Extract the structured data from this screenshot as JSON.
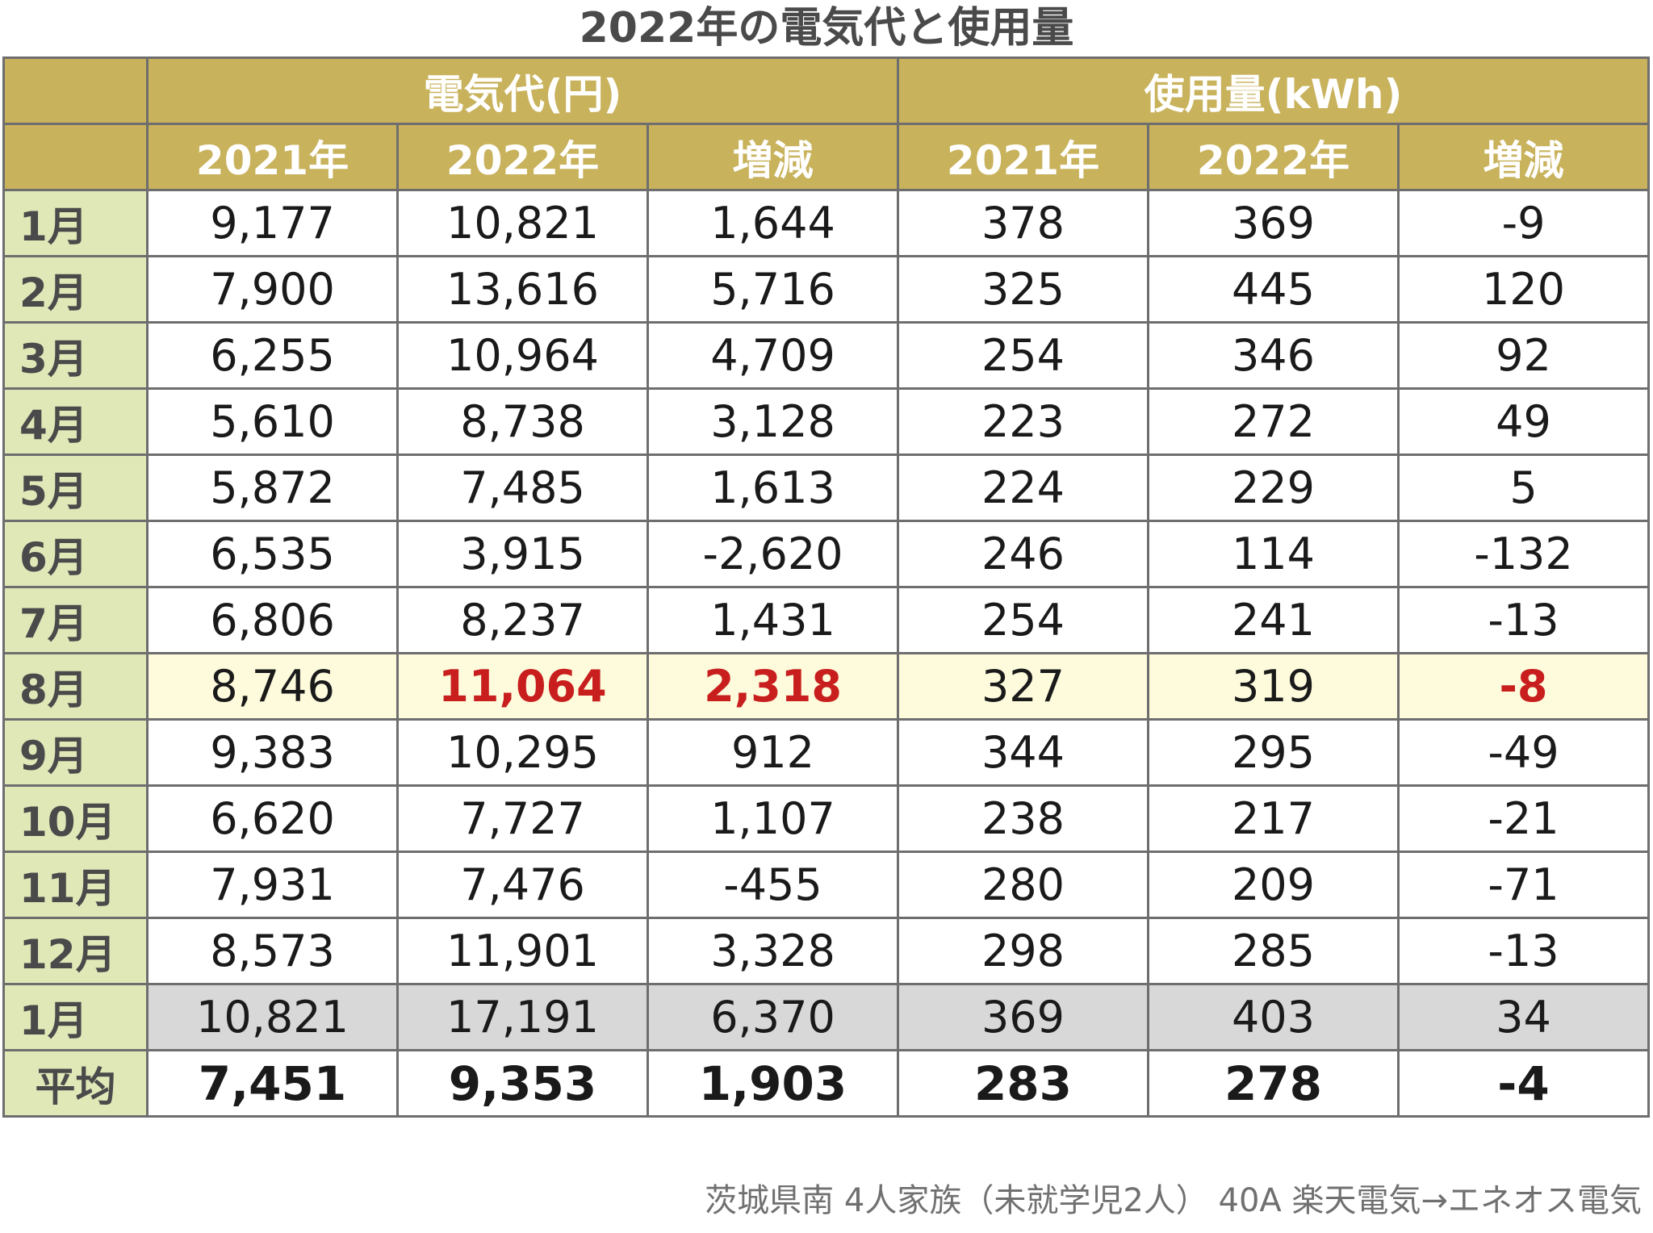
{
  "title": "2022年の電気代と使用量",
  "header": {
    "cost_group": "電気代(円)",
    "usage_group": "使用量(kWh)",
    "cols": [
      "2021年",
      "2022年",
      "増減",
      "2021年",
      "2022年",
      "増減"
    ]
  },
  "rows": [
    {
      "month": "1月",
      "values": [
        "9,177",
        "10,821",
        "1,644",
        "378",
        "369",
        "-9"
      ]
    },
    {
      "month": "2月",
      "values": [
        "7,900",
        "13,616",
        "5,716",
        "325",
        "445",
        "120"
      ]
    },
    {
      "month": "3月",
      "values": [
        "6,255",
        "10,964",
        "4,709",
        "254",
        "346",
        "92"
      ]
    },
    {
      "month": "4月",
      "values": [
        "5,610",
        "8,738",
        "3,128",
        "223",
        "272",
        "49"
      ]
    },
    {
      "month": "5月",
      "values": [
        "5,872",
        "7,485",
        "1,613",
        "224",
        "229",
        "5"
      ]
    },
    {
      "month": "6月",
      "values": [
        "6,535",
        "3,915",
        "-2,620",
        "246",
        "114",
        "-132"
      ]
    },
    {
      "month": "7月",
      "values": [
        "6,806",
        "8,237",
        "1,431",
        "254",
        "241",
        "-13"
      ]
    },
    {
      "month": "8月",
      "values": [
        "8,746",
        "11,064",
        "2,318",
        "327",
        "319",
        "-8"
      ]
    },
    {
      "month": "9月",
      "values": [
        "9,383",
        "10,295",
        "912",
        "344",
        "295",
        "-49"
      ]
    },
    {
      "month": "10月",
      "values": [
        "6,620",
        "7,727",
        "1,107",
        "238",
        "217",
        "-21"
      ]
    },
    {
      "month": "11月",
      "values": [
        "7,931",
        "7,476",
        "-455",
        "280",
        "209",
        "-71"
      ]
    },
    {
      "month": "12月",
      "values": [
        "8,573",
        "11,901",
        "3,328",
        "298",
        "285",
        "-13"
      ]
    },
    {
      "month": "1月",
      "values": [
        "10,821",
        "17,191",
        "6,370",
        "369",
        "403",
        "34"
      ]
    }
  ],
  "average": {
    "label": "平均",
    "values": [
      "7,451",
      "9,353",
      "1,903",
      "283",
      "278",
      "-4"
    ]
  },
  "footnote": "茨城県南 4人家族（未就学児2人） 40A 楽天電気→エネオス電気",
  "colors": {
    "header_bg": "#c8b25c",
    "month_bg": "#e0e8b8",
    "highlight_bg": "#fdfbdc",
    "gray_bg": "#d8d8d8",
    "highlight_text": "#c81e1e",
    "grid": "#6e6e6e"
  },
  "chart_data": {
    "type": "table",
    "title": "2022年の電気代と使用量",
    "column_groups": [
      {
        "name": "電気代(円)",
        "columns": [
          "2021年",
          "2022年",
          "増減"
        ]
      },
      {
        "name": "使用量(kWh)",
        "columns": [
          "2021年",
          "2022年",
          "増減"
        ]
      }
    ],
    "row_labels": [
      "1月",
      "2月",
      "3月",
      "4月",
      "5月",
      "6月",
      "7月",
      "8月",
      "9月",
      "10月",
      "11月",
      "12月",
      "1月",
      "平均"
    ],
    "values": [
      [
        9177,
        10821,
        1644,
        378,
        369,
        -9
      ],
      [
        7900,
        13616,
        5716,
        325,
        445,
        120
      ],
      [
        6255,
        10964,
        4709,
        254,
        346,
        92
      ],
      [
        5610,
        8738,
        3128,
        223,
        272,
        49
      ],
      [
        5872,
        7485,
        1613,
        224,
        229,
        5
      ],
      [
        6535,
        3915,
        -2620,
        246,
        114,
        -132
      ],
      [
        6806,
        8237,
        1431,
        254,
        241,
        -13
      ],
      [
        8746,
        11064,
        2318,
        327,
        319,
        -8
      ],
      [
        9383,
        10295,
        912,
        344,
        295,
        -49
      ],
      [
        6620,
        7727,
        1107,
        238,
        217,
        -21
      ],
      [
        7931,
        7476,
        -455,
        280,
        209,
        -71
      ],
      [
        8573,
        11901,
        3328,
        298,
        285,
        -13
      ],
      [
        10821,
        17191,
        6370,
        369,
        403,
        34
      ],
      [
        7451,
        9353,
        1903,
        283,
        278,
        -4
      ]
    ],
    "highlighted_row": "8月",
    "highlighted_cells_red": [
      "8月 電気代 2022年",
      "8月 電気代 増減",
      "8月 使用量 増減"
    ],
    "gray_row": "1月 (13th row)"
  }
}
